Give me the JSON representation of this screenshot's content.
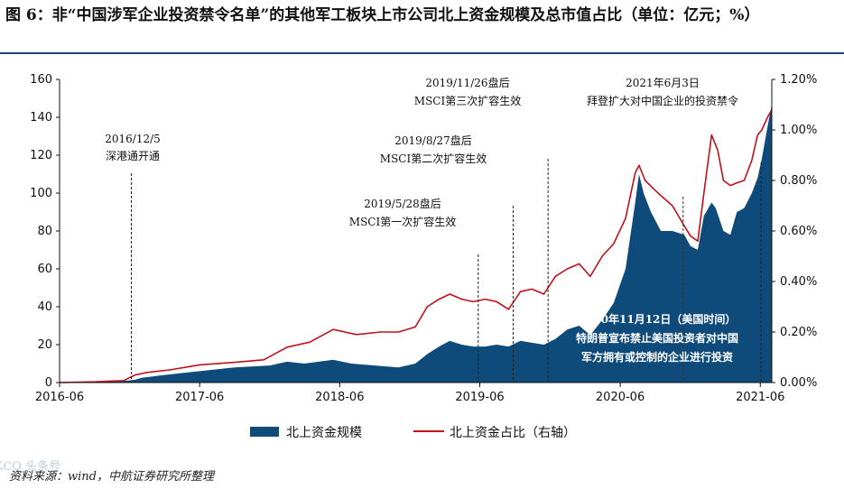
{
  "title": "图 6：非“中国涉军企业投资禁令名单”的其他军工板块上市公司北上资金规模及总市值占比（单位：亿元；%）",
  "source": "资料来源：wind，中航证券研究所整理",
  "watermark": "KCQ 头条号",
  "colors": {
    "area": "#0e4a7a",
    "line": "#c0101a",
    "axis": "#111111",
    "title_rule": "#1f3f7a"
  },
  "chart_data": {
    "type": "area",
    "x_ticks": [
      "2016-06",
      "2017-06",
      "2018-06",
      "2019-06",
      "2020-06",
      "2021-06"
    ],
    "y_left": {
      "ylim": [
        0,
        160
      ],
      "ticks": [
        "0",
        "20",
        "40",
        "60",
        "80",
        "100",
        "120",
        "140",
        "160"
      ]
    },
    "y_right": {
      "ylim": [
        0,
        1.2
      ],
      "ticks": [
        "0.00%",
        "0.20%",
        "0.40%",
        "0.60%",
        "0.80%",
        "1.00%",
        "1.20%"
      ]
    },
    "legend": {
      "position": "bottom",
      "items": [
        "北上资金规模",
        "北上资金占比（右轴）"
      ]
    },
    "series": [
      {
        "name": "北上资金规模",
        "axis": "left",
        "kind": "area",
        "points": [
          [
            "2016-06-01",
            0
          ],
          [
            "2016-09-01",
            0.3
          ],
          [
            "2016-11-15",
            0.8
          ],
          [
            "2016-12-15",
            1.5
          ],
          [
            "2017-01-01",
            2.5
          ],
          [
            "2017-03-01",
            4
          ],
          [
            "2017-06-01",
            6
          ],
          [
            "2017-09-01",
            8
          ],
          [
            "2017-12-01",
            9
          ],
          [
            "2018-01-15",
            11
          ],
          [
            "2018-03-01",
            10
          ],
          [
            "2018-05-15",
            12
          ],
          [
            "2018-07-01",
            10
          ],
          [
            "2018-09-01",
            9
          ],
          [
            "2018-11-01",
            8
          ],
          [
            "2018-12-15",
            10
          ],
          [
            "2019-01-15",
            15
          ],
          [
            "2019-02-15",
            19
          ],
          [
            "2019-03-15",
            22
          ],
          [
            "2019-04-15",
            20
          ],
          [
            "2019-05-15",
            19
          ],
          [
            "2019-06-15",
            19
          ],
          [
            "2019-07-15",
            20
          ],
          [
            "2019-08-15",
            19
          ],
          [
            "2019-09-15",
            22
          ],
          [
            "2019-10-15",
            21
          ],
          [
            "2019-11-15",
            20
          ],
          [
            "2019-12-15",
            23
          ],
          [
            "2020-01-15",
            28
          ],
          [
            "2020-02-15",
            30
          ],
          [
            "2020-03-15",
            25
          ],
          [
            "2020-04-15",
            33
          ],
          [
            "2020-05-15",
            42
          ],
          [
            "2020-06-15",
            60
          ],
          [
            "2020-07-10",
            95
          ],
          [
            "2020-07-20",
            110
          ],
          [
            "2020-08-01",
            100
          ],
          [
            "2020-08-20",
            90
          ],
          [
            "2020-09-15",
            80
          ],
          [
            "2020-10-15",
            80
          ],
          [
            "2020-11-15",
            78
          ],
          [
            "2020-12-01",
            72
          ],
          [
            "2020-12-20",
            70
          ],
          [
            "2021-01-05",
            88
          ],
          [
            "2021-01-25",
            95
          ],
          [
            "2021-02-05",
            92
          ],
          [
            "2021-02-25",
            80
          ],
          [
            "2021-03-15",
            78
          ],
          [
            "2021-04-01",
            90
          ],
          [
            "2021-04-20",
            92
          ],
          [
            "2021-05-10",
            100
          ],
          [
            "2021-05-25",
            108
          ],
          [
            "2021-06-05",
            118
          ],
          [
            "2021-06-20",
            135
          ],
          [
            "2021-07-01",
            147
          ]
        ]
      },
      {
        "name": "北上资金占比（右轴）",
        "axis": "right",
        "kind": "line",
        "points": [
          [
            "2016-06-01",
            0
          ],
          [
            "2016-09-01",
            0.003
          ],
          [
            "2016-11-15",
            0.008
          ],
          [
            "2016-12-15",
            0.03
          ],
          [
            "2017-01-15",
            0.04
          ],
          [
            "2017-03-15",
            0.05
          ],
          [
            "2017-06-01",
            0.07
          ],
          [
            "2017-09-01",
            0.08
          ],
          [
            "2017-11-15",
            0.09
          ],
          [
            "2018-01-15",
            0.14
          ],
          [
            "2018-03-15",
            0.16
          ],
          [
            "2018-05-15",
            0.21
          ],
          [
            "2018-07-15",
            0.19
          ],
          [
            "2018-09-15",
            0.2
          ],
          [
            "2018-11-01",
            0.2
          ],
          [
            "2018-12-15",
            0.22
          ],
          [
            "2019-01-15",
            0.3
          ],
          [
            "2019-02-15",
            0.33
          ],
          [
            "2019-03-15",
            0.35
          ],
          [
            "2019-04-15",
            0.33
          ],
          [
            "2019-05-15",
            0.32
          ],
          [
            "2019-06-15",
            0.33
          ],
          [
            "2019-07-15",
            0.32
          ],
          [
            "2019-08-15",
            0.29
          ],
          [
            "2019-09-15",
            0.36
          ],
          [
            "2019-10-15",
            0.37
          ],
          [
            "2019-11-15",
            0.35
          ],
          [
            "2019-12-15",
            0.42
          ],
          [
            "2020-01-15",
            0.45
          ],
          [
            "2020-02-15",
            0.47
          ],
          [
            "2020-03-15",
            0.42
          ],
          [
            "2020-04-15",
            0.5
          ],
          [
            "2020-05-15",
            0.55
          ],
          [
            "2020-06-15",
            0.65
          ],
          [
            "2020-07-10",
            0.83
          ],
          [
            "2020-07-20",
            0.86
          ],
          [
            "2020-08-05",
            0.8
          ],
          [
            "2020-08-25",
            0.77
          ],
          [
            "2020-09-15",
            0.74
          ],
          [
            "2020-10-15",
            0.7
          ],
          [
            "2020-11-15",
            0.62
          ],
          [
            "2020-12-01",
            0.58
          ],
          [
            "2020-12-20",
            0.56
          ],
          [
            "2021-01-05",
            0.75
          ],
          [
            "2021-01-25",
            0.98
          ],
          [
            "2021-02-10",
            0.92
          ],
          [
            "2021-02-25",
            0.8
          ],
          [
            "2021-03-15",
            0.78
          ],
          [
            "2021-04-01",
            0.79
          ],
          [
            "2021-04-20",
            0.8
          ],
          [
            "2021-05-10",
            0.88
          ],
          [
            "2021-05-25",
            0.98
          ],
          [
            "2021-06-05",
            1.0
          ],
          [
            "2021-06-20",
            1.05
          ],
          [
            "2021-07-01",
            1.08
          ]
        ]
      }
    ],
    "annotations": [
      {
        "date": "2016-12-05",
        "lines": [
          "2016/12/5",
          "深港通开通"
        ]
      },
      {
        "date": "2019-05-28",
        "lines": [
          "2019/5/28盘后",
          "MSCI第一次扩容生效"
        ]
      },
      {
        "date": "2019-08-27",
        "lines": [
          "2019/8/27盘后",
          "MSCI第二次扩容生效"
        ]
      },
      {
        "date": "2019-11-26",
        "lines": [
          "2019/11/26盘后",
          "MSCI第三次扩容生效"
        ]
      },
      {
        "date": "2020-11-12",
        "lines": [
          "2020年11月12日（美国时间）",
          "特朗普宣布禁止美国投资者对中国",
          "军方拥有或控制的企业进行投资"
        ]
      },
      {
        "date": "2021-06-03",
        "lines": [
          "2021年6月3日",
          "拜登扩大对中国企业的投资禁令"
        ]
      }
    ]
  }
}
